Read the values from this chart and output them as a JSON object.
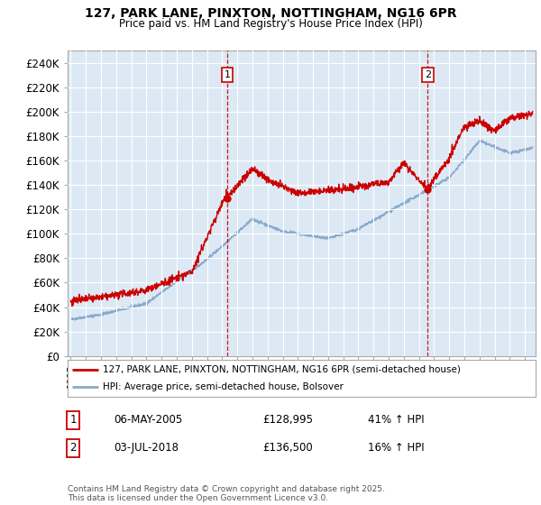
{
  "title1": "127, PARK LANE, PINXTON, NOTTINGHAM, NG16 6PR",
  "title2": "Price paid vs. HM Land Registry's House Price Index (HPI)",
  "ylabel_ticks": [
    "£0",
    "£20K",
    "£40K",
    "£60K",
    "£80K",
    "£100K",
    "£120K",
    "£140K",
    "£160K",
    "£180K",
    "£200K",
    "£220K",
    "£240K"
  ],
  "ytick_values": [
    0,
    20000,
    40000,
    60000,
    80000,
    100000,
    120000,
    140000,
    160000,
    180000,
    200000,
    220000,
    240000
  ],
  "ylim": [
    0,
    250000
  ],
  "legend_line1": "127, PARK LANE, PINXTON, NOTTINGHAM, NG16 6PR (semi-detached house)",
  "legend_line2": "HPI: Average price, semi-detached house, Bolsover",
  "annotation1_label": "1",
  "annotation1_date": "06-MAY-2005",
  "annotation1_price": "£128,995",
  "annotation1_hpi": "41% ↑ HPI",
  "annotation2_label": "2",
  "annotation2_date": "03-JUL-2018",
  "annotation2_price": "£136,500",
  "annotation2_hpi": "16% ↑ HPI",
  "footer": "Contains HM Land Registry data © Crown copyright and database right 2025.\nThis data is licensed under the Open Government Licence v3.0.",
  "red_color": "#cc0000",
  "blue_color": "#88aacc",
  "vline_color": "#cc0000",
  "bg_color": "#ffffff",
  "plot_bg_color": "#dce9f5",
  "grid_color": "#ffffff",
  "purchase1_value": 128995,
  "purchase2_value": 136500,
  "purchase1_year": 2005.35,
  "purchase2_year": 2018.58
}
